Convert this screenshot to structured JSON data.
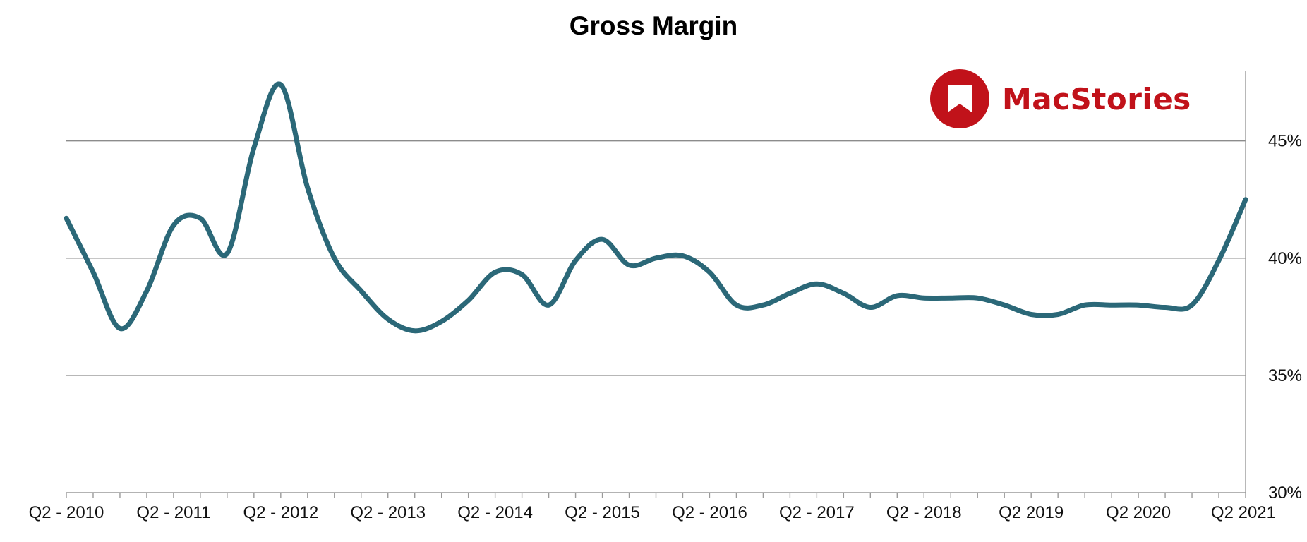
{
  "colors": {
    "line": "#2b6878",
    "logo": "#c1121a"
  },
  "logo": {
    "text": "MacStories",
    "icon": "bookmark-icon"
  },
  "chart_data": {
    "type": "line",
    "title": "Gross Margin",
    "xlabel": "",
    "ylabel": "",
    "x_tick_labels": [
      "Q2 - 2010",
      "Q2 - 2011",
      "Q2 - 2012",
      "Q2 - 2013",
      "Q2 - 2014",
      "Q2 - 2015",
      "Q2 - 2016",
      "Q2 - 2017",
      "Q2 - 2018",
      "Q2 2019",
      "Q2 2020",
      "Q2 2021"
    ],
    "y_ticks": [
      30,
      35,
      40,
      45
    ],
    "y_tick_labels": [
      "30%",
      "35%",
      "40%",
      "45%"
    ],
    "ylim": [
      30,
      48
    ],
    "y_axis_side": "right",
    "grid": true,
    "series": [
      {
        "values": [
          41.7,
          39.4,
          37.0,
          38.6,
          41.4,
          41.7,
          40.2,
          44.7,
          47.4,
          43.0,
          40.0,
          38.6,
          37.4,
          36.9,
          37.3,
          38.2,
          39.4,
          39.3,
          38.0,
          39.9,
          40.8,
          39.7,
          40.0,
          40.1,
          39.4,
          38.0,
          38.0,
          38.5,
          38.9,
          38.5,
          37.9,
          38.4,
          38.3,
          38.3,
          38.3,
          38.0,
          37.6,
          37.6,
          38.0,
          38.0,
          38.0,
          37.9,
          38.0,
          39.9,
          42.5
        ]
      }
    ]
  }
}
